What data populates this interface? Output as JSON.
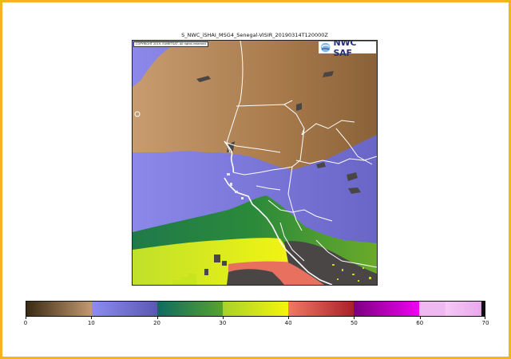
{
  "map": {
    "title": "S_NWC_iSHAI_MSG4_Senegal-VISIR_20190314T120000Z",
    "copyright": "COPYRIGHT 2019, EUMETSAT, All rights reserved",
    "logo_text": "NWC SAF",
    "region": "Senegal",
    "colors": {
      "land_brown": "#b8865a",
      "water_purple": "#8a86e8",
      "green": "#2f8a3c",
      "yellow": "#d8ef12",
      "red": "#e86a5a",
      "cloud_gray": "#4a4a4a",
      "borders": "#ffffff"
    }
  },
  "colorbar": {
    "min": 0,
    "max": 70,
    "tick_labels": [
      "0",
      "10",
      "20",
      "30",
      "40",
      "50",
      "60",
      "70"
    ],
    "segments": [
      {
        "from": 0,
        "to": 10,
        "start": "#3a2a12",
        "end": "#c49a72"
      },
      {
        "from": 10,
        "to": 20,
        "start": "#8c8cf2",
        "end": "#5a58b0"
      },
      {
        "from": 20,
        "to": 30,
        "start": "#0f6a62",
        "end": "#56a42c"
      },
      {
        "from": 30,
        "to": 40,
        "start": "#a8d22a",
        "end": "#f6f50a"
      },
      {
        "from": 40,
        "to": 50,
        "start": "#f07a62",
        "end": "#a8202a"
      },
      {
        "from": 50,
        "to": 60,
        "start": "#7a0080",
        "end": "#f200f2"
      },
      {
        "from": 60,
        "to": 64,
        "start": "#f0b8f0",
        "end": "#f0b8f0"
      },
      {
        "from": 64,
        "to": 69.5,
        "start": "#f5c8f5",
        "end": "#e8a8ec"
      },
      {
        "from": 69.5,
        "to": 70,
        "start": "#111111",
        "end": "#111111"
      }
    ]
  }
}
